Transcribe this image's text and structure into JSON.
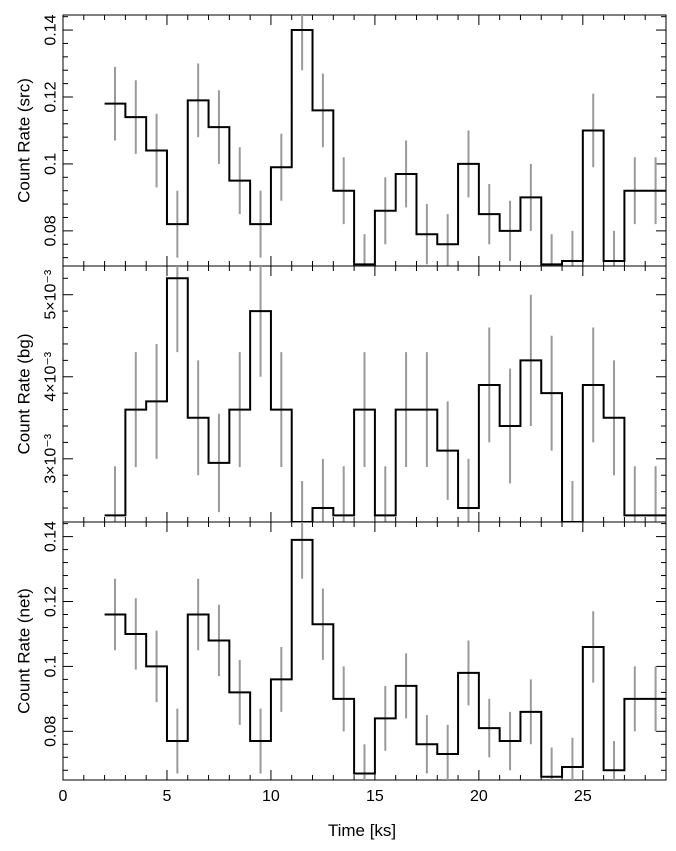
{
  "chart_data": {
    "type": "step",
    "xlabel": "Time [ks]",
    "xlim": [
      0,
      29
    ],
    "x_ticks": [
      0,
      5,
      10,
      15,
      20,
      25
    ],
    "x_tick_labels": [
      "0",
      "5",
      "10",
      "15",
      "20",
      "25"
    ],
    "bin_edges": [
      2,
      3,
      4,
      5,
      6,
      7,
      8,
      9,
      10,
      11,
      12,
      13,
      14,
      15,
      16,
      17,
      18,
      19,
      20,
      21,
      22,
      23,
      24,
      25,
      26,
      27,
      28,
      29
    ],
    "x": [
      2.5,
      3.5,
      4.5,
      5.5,
      6.5,
      7.5,
      8.5,
      9.5,
      10.5,
      11.5,
      12.5,
      13.5,
      14.5,
      15.5,
      16.5,
      17.5,
      18.5,
      19.5,
      20.5,
      21.5,
      22.5,
      23.5,
      24.5,
      25.5,
      26.5,
      27.5,
      28.5
    ],
    "panels": [
      {
        "ylabel": "Count Rate (src)",
        "ylim": [
          0.0695,
          0.1445
        ],
        "y_ticks": [
          0.08,
          0.1,
          0.12,
          0.14
        ],
        "y_tick_labels": [
          "0.08",
          "0.1",
          "0.12",
          "0.14"
        ],
        "values": [
          0.118,
          0.114,
          0.104,
          0.082,
          0.119,
          0.111,
          0.095,
          0.082,
          0.099,
          0.14,
          0.116,
          0.092,
          0.07,
          0.086,
          0.097,
          0.079,
          0.076,
          0.1,
          0.085,
          0.08,
          0.09,
          0.07,
          0.071,
          0.11,
          0.071,
          0.092,
          0.092
        ],
        "errors": [
          0.011,
          0.011,
          0.011,
          0.01,
          0.011,
          0.011,
          0.01,
          0.01,
          0.01,
          0.012,
          0.011,
          0.01,
          0.009,
          0.01,
          0.01,
          0.009,
          0.009,
          0.01,
          0.009,
          0.009,
          0.01,
          0.009,
          0.009,
          0.011,
          0.009,
          0.01,
          0.01
        ]
      },
      {
        "ylabel": "Count Rate (bg)",
        "ylim": [
          0.00223,
          0.00535
        ],
        "y_ticks": [
          0.003,
          0.004,
          0.005
        ],
        "y_tick_labels": [
          "3×10⁻³",
          "4×10⁻³",
          "5×10⁻³"
        ],
        "values": [
          0.00231,
          0.0036,
          0.0037,
          0.0052,
          0.0035,
          0.00295,
          0.0036,
          0.0048,
          0.0036,
          0.00223,
          0.0024,
          0.00231,
          0.0036,
          0.00231,
          0.0036,
          0.0036,
          0.0031,
          0.0024,
          0.0039,
          0.0034,
          0.0042,
          0.0038,
          0.00223,
          0.0039,
          0.0035,
          0.00231,
          0.00231
        ],
        "errors": [
          0.0006,
          0.0007,
          0.0007,
          0.0009,
          0.0007,
          0.0006,
          0.0007,
          0.0008,
          0.0007,
          0.0005,
          0.0006,
          0.0006,
          0.0007,
          0.0006,
          0.0007,
          0.0007,
          0.0006,
          0.0006,
          0.0007,
          0.0007,
          0.0008,
          0.0007,
          0.0005,
          0.0007,
          0.0007,
          0.0006,
          0.0006
        ]
      },
      {
        "ylabel": "Count Rate (net)",
        "ylim": [
          0.065,
          0.1445
        ],
        "y_ticks": [
          0.08,
          0.1,
          0.12,
          0.14
        ],
        "y_tick_labels": [
          "0.08",
          "0.1",
          "0.12",
          "0.14"
        ],
        "values": [
          0.116,
          0.11,
          0.1,
          0.077,
          0.116,
          0.108,
          0.092,
          0.077,
          0.096,
          0.139,
          0.113,
          0.09,
          0.067,
          0.084,
          0.094,
          0.076,
          0.073,
          0.098,
          0.081,
          0.077,
          0.086,
          0.066,
          0.069,
          0.106,
          0.068,
          0.09,
          0.09
        ],
        "errors": [
          0.011,
          0.011,
          0.011,
          0.01,
          0.011,
          0.011,
          0.01,
          0.01,
          0.01,
          0.012,
          0.011,
          0.01,
          0.009,
          0.01,
          0.01,
          0.009,
          0.009,
          0.01,
          0.009,
          0.009,
          0.01,
          0.009,
          0.009,
          0.011,
          0.009,
          0.01,
          0.01
        ]
      }
    ]
  }
}
